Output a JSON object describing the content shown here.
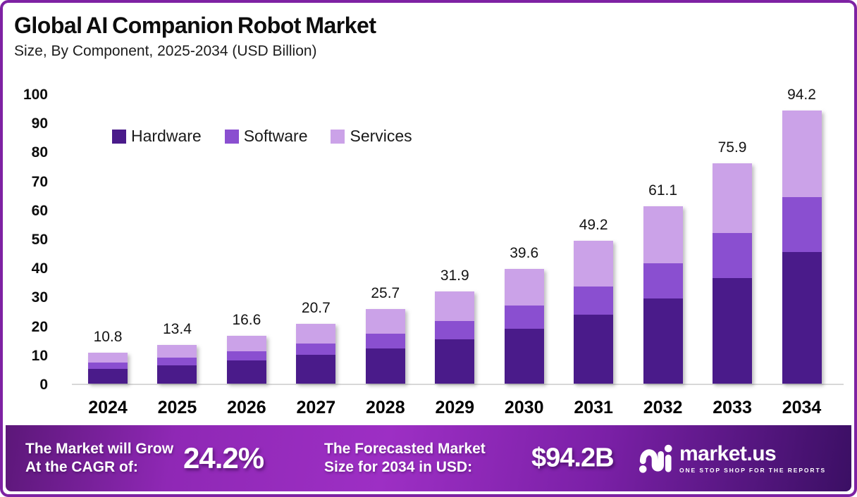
{
  "header": {
    "title": "Global AI Companion Robot Market",
    "subtitle": "Size, By Component, 2025-2034 (USD Billion)"
  },
  "chart_data": {
    "type": "bar",
    "stacked": true,
    "title": "Global AI Companion Robot Market",
    "subtitle": "Size, By Component, 2025-2034 (USD Billion)",
    "categories": [
      "2024",
      "2025",
      "2026",
      "2027",
      "2028",
      "2029",
      "2030",
      "2031",
      "2032",
      "2033",
      "2034"
    ],
    "series": [
      {
        "name": "Hardware",
        "color": "#4A1B8A",
        "values": [
          5.2,
          6.3,
          8.0,
          9.9,
          12.2,
          15.4,
          19.0,
          23.7,
          29.4,
          36.4,
          45.4
        ]
      },
      {
        "name": "Software",
        "color": "#8A4FD0",
        "values": [
          2.0,
          2.6,
          3.2,
          4.0,
          5.0,
          6.3,
          7.9,
          9.9,
          12.1,
          15.5,
          19.0
        ]
      },
      {
        "name": "Services",
        "color": "#CBA2E8",
        "values": [
          3.6,
          4.5,
          5.4,
          6.8,
          8.5,
          10.2,
          12.7,
          15.6,
          19.6,
          24.0,
          29.8
        ]
      }
    ],
    "totals": [
      10.8,
      13.4,
      16.6,
      20.7,
      25.7,
      31.9,
      39.6,
      49.2,
      61.1,
      75.9,
      94.2
    ],
    "total_labels": [
      "10.8",
      "13.4",
      "16.6",
      "20.7",
      "25.7",
      "31.9",
      "39.6",
      "49.2",
      "61.1",
      "75.9",
      "94.2"
    ],
    "xlabel": "",
    "ylabel": "",
    "ylim": [
      0,
      100
    ],
    "yticks": [
      0,
      10,
      20,
      30,
      40,
      50,
      60,
      70,
      80,
      90,
      100
    ],
    "grid": false,
    "legend_position": "inside-top-left"
  },
  "banner": {
    "cagr_label_line1": "The Market will Grow",
    "cagr_label_line2": "At the CAGR of:",
    "cagr_value": "24.2%",
    "forecast_label_line1": "The Forecasted Market",
    "forecast_label_line2": "Size for 2034 in USD:",
    "forecast_value": "$94.2B",
    "logo_text": "market.us",
    "logo_tagline": "ONE STOP SHOP FOR THE REPORTS"
  },
  "colors": {
    "hardware": "#4A1B8A",
    "software": "#8A4FD0",
    "services": "#CBA2E8",
    "frame_border": "#7E22A3",
    "axis_line": "#D8D8D8",
    "banner_gradient_left": "#5C1779",
    "banner_gradient_mid": "#9D2FC4",
    "banner_gradient_right": "#3B0F64",
    "text_dark": "#0D0D0D",
    "banner_text": "#FFFFFF"
  }
}
